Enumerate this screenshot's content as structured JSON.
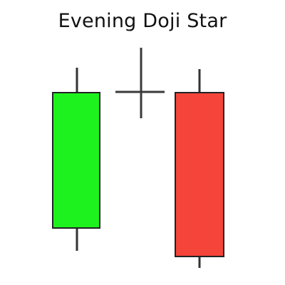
{
  "title": "Evening Doji Star",
  "colors": {
    "bullish_body": "#1ef21e",
    "bearish_body": "#f5443a",
    "outline": "#222222",
    "wick": "#333333",
    "doji": "#3a3a3a"
  },
  "pattern": {
    "name": "Evening Doji Star",
    "candles": [
      {
        "role": "bullish-candle",
        "direction": "up"
      },
      {
        "role": "doji-star",
        "direction": "neutral"
      },
      {
        "role": "bearish-candle",
        "direction": "down"
      }
    ]
  }
}
